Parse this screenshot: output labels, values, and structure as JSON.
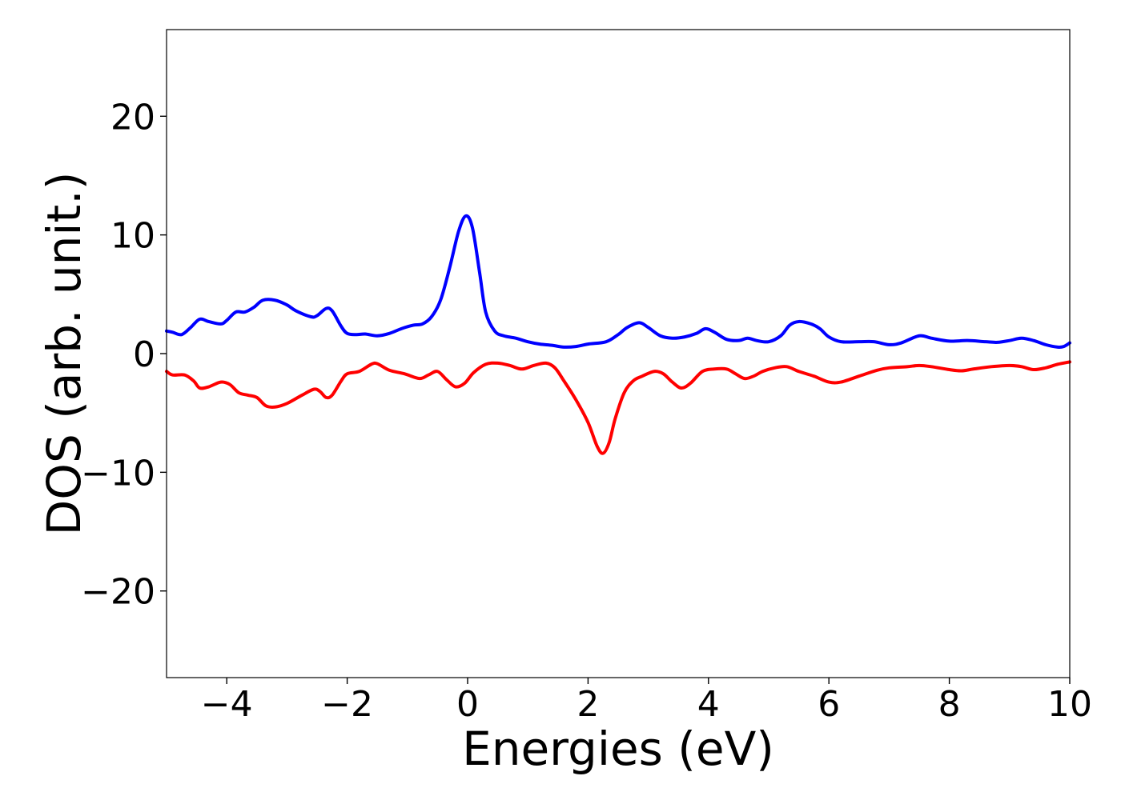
{
  "chart_data": {
    "type": "line",
    "xlabel": "Energies (eV)",
    "ylabel": "DOS (arb. unit.)",
    "xlim": [
      -5,
      10
    ],
    "ylim": [
      -27.3,
      27.3
    ],
    "xticks": [
      -4,
      -2,
      0,
      2,
      4,
      6,
      8,
      10
    ],
    "xtick_labels": [
      "−4",
      "−2",
      "0",
      "2",
      "4",
      "6",
      "8",
      "10"
    ],
    "yticks": [
      -20,
      -10,
      0,
      10,
      20
    ],
    "ytick_labels": [
      "−20",
      "−10",
      "0",
      "10",
      "20"
    ],
    "grid": false,
    "legend": "none",
    "series": [
      {
        "color": "#0000ff",
        "points": [
          [
            -5.0,
            1.9
          ],
          [
            -4.9,
            1.8
          ],
          [
            -4.75,
            1.6
          ],
          [
            -4.6,
            2.2
          ],
          [
            -4.45,
            2.9
          ],
          [
            -4.3,
            2.7
          ],
          [
            -4.1,
            2.5
          ],
          [
            -4.0,
            2.8
          ],
          [
            -3.85,
            3.5
          ],
          [
            -3.7,
            3.5
          ],
          [
            -3.55,
            3.9
          ],
          [
            -3.4,
            4.5
          ],
          [
            -3.2,
            4.5
          ],
          [
            -3.0,
            4.1
          ],
          [
            -2.85,
            3.6
          ],
          [
            -2.6,
            3.1
          ],
          [
            -2.5,
            3.2
          ],
          [
            -2.35,
            3.8
          ],
          [
            -2.25,
            3.6
          ],
          [
            -2.1,
            2.3
          ],
          [
            -2.0,
            1.7
          ],
          [
            -1.85,
            1.6
          ],
          [
            -1.7,
            1.65
          ],
          [
            -1.5,
            1.5
          ],
          [
            -1.3,
            1.7
          ],
          [
            -1.1,
            2.1
          ],
          [
            -0.9,
            2.4
          ],
          [
            -0.75,
            2.5
          ],
          [
            -0.6,
            3.1
          ],
          [
            -0.45,
            4.5
          ],
          [
            -0.3,
            7.2
          ],
          [
            -0.15,
            10.3
          ],
          [
            -0.03,
            11.6
          ],
          [
            0.08,
            10.6
          ],
          [
            0.2,
            6.8
          ],
          [
            0.3,
            3.5
          ],
          [
            0.45,
            1.9
          ],
          [
            0.6,
            1.5
          ],
          [
            0.8,
            1.3
          ],
          [
            1.0,
            1.0
          ],
          [
            1.2,
            0.8
          ],
          [
            1.4,
            0.7
          ],
          [
            1.6,
            0.55
          ],
          [
            1.8,
            0.6
          ],
          [
            2.0,
            0.8
          ],
          [
            2.3,
            1.0
          ],
          [
            2.5,
            1.6
          ],
          [
            2.65,
            2.2
          ],
          [
            2.85,
            2.6
          ],
          [
            3.0,
            2.2
          ],
          [
            3.2,
            1.5
          ],
          [
            3.4,
            1.3
          ],
          [
            3.6,
            1.4
          ],
          [
            3.8,
            1.7
          ],
          [
            3.95,
            2.1
          ],
          [
            4.1,
            1.8
          ],
          [
            4.3,
            1.2
          ],
          [
            4.5,
            1.1
          ],
          [
            4.65,
            1.3
          ],
          [
            4.8,
            1.1
          ],
          [
            5.0,
            1.0
          ],
          [
            5.2,
            1.5
          ],
          [
            5.35,
            2.4
          ],
          [
            5.5,
            2.7
          ],
          [
            5.7,
            2.5
          ],
          [
            5.85,
            2.1
          ],
          [
            6.0,
            1.4
          ],
          [
            6.2,
            1.0
          ],
          [
            6.5,
            1.0
          ],
          [
            6.75,
            1.0
          ],
          [
            7.0,
            0.75
          ],
          [
            7.2,
            0.9
          ],
          [
            7.5,
            1.5
          ],
          [
            7.7,
            1.3
          ],
          [
            8.0,
            1.05
          ],
          [
            8.3,
            1.1
          ],
          [
            8.6,
            1.0
          ],
          [
            8.8,
            0.95
          ],
          [
            9.0,
            1.1
          ],
          [
            9.2,
            1.3
          ],
          [
            9.4,
            1.1
          ],
          [
            9.6,
            0.75
          ],
          [
            9.8,
            0.55
          ],
          [
            9.9,
            0.6
          ],
          [
            10.0,
            0.9
          ]
        ]
      },
      {
        "color": "#ff0000",
        "points": [
          [
            -5.0,
            -1.5
          ],
          [
            -4.9,
            -1.8
          ],
          [
            -4.7,
            -1.8
          ],
          [
            -4.55,
            -2.3
          ],
          [
            -4.45,
            -2.9
          ],
          [
            -4.3,
            -2.8
          ],
          [
            -4.1,
            -2.4
          ],
          [
            -3.95,
            -2.6
          ],
          [
            -3.8,
            -3.3
          ],
          [
            -3.65,
            -3.5
          ],
          [
            -3.5,
            -3.7
          ],
          [
            -3.35,
            -4.4
          ],
          [
            -3.2,
            -4.5
          ],
          [
            -3.0,
            -4.2
          ],
          [
            -2.75,
            -3.5
          ],
          [
            -2.55,
            -3.0
          ],
          [
            -2.45,
            -3.2
          ],
          [
            -2.35,
            -3.7
          ],
          [
            -2.25,
            -3.5
          ],
          [
            -2.1,
            -2.3
          ],
          [
            -2.0,
            -1.7
          ],
          [
            -1.8,
            -1.5
          ],
          [
            -1.6,
            -0.9
          ],
          [
            -1.5,
            -0.85
          ],
          [
            -1.3,
            -1.4
          ],
          [
            -1.05,
            -1.7
          ],
          [
            -0.8,
            -2.1
          ],
          [
            -0.65,
            -1.8
          ],
          [
            -0.5,
            -1.5
          ],
          [
            -0.35,
            -2.2
          ],
          [
            -0.2,
            -2.8
          ],
          [
            -0.05,
            -2.5
          ],
          [
            0.1,
            -1.6
          ],
          [
            0.3,
            -0.9
          ],
          [
            0.5,
            -0.8
          ],
          [
            0.7,
            -1.0
          ],
          [
            0.9,
            -1.3
          ],
          [
            1.1,
            -1.0
          ],
          [
            1.3,
            -0.8
          ],
          [
            1.45,
            -1.2
          ],
          [
            1.6,
            -2.3
          ],
          [
            1.8,
            -3.9
          ],
          [
            2.0,
            -5.8
          ],
          [
            2.15,
            -7.8
          ],
          [
            2.25,
            -8.4
          ],
          [
            2.35,
            -7.5
          ],
          [
            2.45,
            -5.5
          ],
          [
            2.6,
            -3.3
          ],
          [
            2.75,
            -2.3
          ],
          [
            2.9,
            -1.9
          ],
          [
            3.1,
            -1.5
          ],
          [
            3.25,
            -1.7
          ],
          [
            3.4,
            -2.4
          ],
          [
            3.55,
            -2.9
          ],
          [
            3.7,
            -2.5
          ],
          [
            3.9,
            -1.5
          ],
          [
            4.1,
            -1.3
          ],
          [
            4.3,
            -1.3
          ],
          [
            4.45,
            -1.7
          ],
          [
            4.6,
            -2.1
          ],
          [
            4.75,
            -1.9
          ],
          [
            4.9,
            -1.5
          ],
          [
            5.1,
            -1.2
          ],
          [
            5.3,
            -1.1
          ],
          [
            5.5,
            -1.5
          ],
          [
            5.75,
            -1.9
          ],
          [
            6.0,
            -2.4
          ],
          [
            6.2,
            -2.4
          ],
          [
            6.5,
            -1.9
          ],
          [
            6.8,
            -1.4
          ],
          [
            7.0,
            -1.2
          ],
          [
            7.3,
            -1.1
          ],
          [
            7.5,
            -1.0
          ],
          [
            7.7,
            -1.1
          ],
          [
            8.0,
            -1.35
          ],
          [
            8.2,
            -1.45
          ],
          [
            8.4,
            -1.3
          ],
          [
            8.7,
            -1.1
          ],
          [
            9.0,
            -1.0
          ],
          [
            9.2,
            -1.1
          ],
          [
            9.4,
            -1.35
          ],
          [
            9.6,
            -1.2
          ],
          [
            9.8,
            -0.9
          ],
          [
            10.0,
            -0.7
          ]
        ]
      }
    ]
  }
}
